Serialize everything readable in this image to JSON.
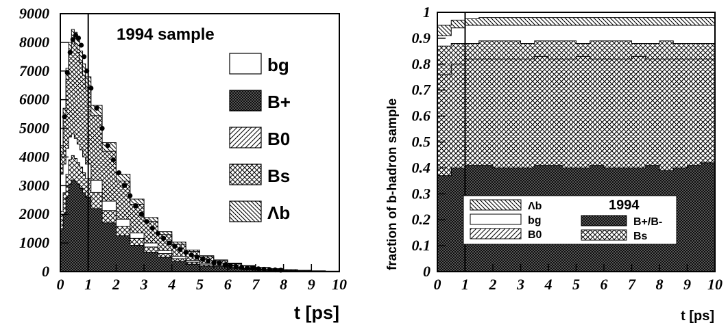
{
  "chart_data": [
    {
      "type": "area",
      "annotation": "1994 sample",
      "xlabel": "t [ps]",
      "ylabel": "",
      "xlim": [
        0,
        10
      ],
      "ylim": [
        0,
        9000
      ],
      "x_ticks": [
        "0",
        "1",
        "2",
        "3",
        "4",
        "5",
        "6",
        "7",
        "8",
        "9",
        "10"
      ],
      "y_ticks": [
        "0",
        "1000",
        "2000",
        "3000",
        "4000",
        "5000",
        "6000",
        "7000",
        "8000",
        "9000"
      ],
      "cut_line_x": 1,
      "legend_position": "right",
      "legend": [
        {
          "label": "bg",
          "pattern": "empty"
        },
        {
          "label": "B+",
          "pattern": "crosshatch-dense"
        },
        {
          "label": "B0",
          "pattern": "diag-up"
        },
        {
          "label": "Bs",
          "pattern": "crosshatch"
        },
        {
          "label": "Λb",
          "pattern": "diag-down"
        }
      ],
      "stack_order": [
        "B+",
        "Bs",
        "bg",
        "B0",
        "Λb"
      ],
      "x": [
        0.05,
        0.15,
        0.25,
        0.35,
        0.45,
        0.55,
        0.65,
        0.75,
        0.85,
        0.95,
        1.25,
        1.75,
        2.25,
        2.75,
        3.25,
        3.75,
        4.25,
        4.75,
        5.25,
        5.75,
        6.25,
        6.75,
        7.25,
        7.75,
        8.25,
        8.75,
        9.25,
        9.75
      ],
      "series": [
        {
          "name": "B+",
          "values": [
            1500,
            2000,
            2600,
            3050,
            3200,
            3150,
            3050,
            2900,
            2750,
            2600,
            2200,
            1700,
            1250,
            920,
            680,
            500,
            360,
            260,
            190,
            140,
            100,
            70,
            50,
            35,
            25,
            15,
            10,
            5
          ]
        },
        {
          "name": "Bs",
          "values": [
            600,
            750,
            800,
            850,
            850,
            800,
            750,
            750,
            700,
            650,
            560,
            430,
            330,
            240,
            180,
            130,
            95,
            70,
            50,
            35,
            25,
            18,
            12,
            8,
            5,
            3,
            2,
            1
          ]
        },
        {
          "name": "bg",
          "values": [
            1300,
            1000,
            900,
            800,
            750,
            700,
            650,
            600,
            550,
            500,
            430,
            330,
            250,
            190,
            140,
            105,
            80,
            60,
            45,
            35,
            25,
            18,
            12,
            8,
            5,
            3,
            2,
            1
          ]
        },
        {
          "name": "B0",
          "values": [
            700,
            1600,
            2400,
            2900,
            3250,
            3300,
            3200,
            3050,
            2850,
            2650,
            2260,
            1740,
            1330,
            1000,
            750,
            560,
            420,
            310,
            230,
            170,
            125,
            90,
            65,
            45,
            30,
            20,
            12,
            8
          ]
        },
        {
          "name": "Λb",
          "values": [
            300,
            350,
            400,
            400,
            400,
            400,
            400,
            400,
            400,
            400,
            350,
            300,
            240,
            180,
            135,
            100,
            75,
            55,
            40,
            30,
            22,
            15,
            10,
            7,
            5,
            3,
            2,
            1
          ]
        }
      ],
      "data_points": {
        "x": [
          0.15,
          0.25,
          0.35,
          0.45,
          0.55,
          0.65,
          0.75,
          0.85,
          0.95,
          1.1,
          1.3,
          1.5,
          1.7,
          1.9,
          2.1,
          2.3,
          2.5,
          2.7,
          2.9,
          3.1,
          3.3,
          3.5,
          3.7,
          3.9,
          4.1,
          4.3,
          4.5,
          4.7,
          4.9,
          5.1,
          5.3,
          5.5,
          5.7,
          5.9,
          6.1,
          6.3,
          6.5,
          6.7,
          6.9,
          7.1,
          7.3,
          7.5,
          7.7,
          7.9
        ],
        "y": [
          5400,
          6950,
          7650,
          8100,
          8250,
          8150,
          7900,
          7500,
          7000,
          6400,
          5700,
          5000,
          4400,
          3900,
          3450,
          3000,
          2650,
          2300,
          2000,
          1750,
          1520,
          1330,
          1160,
          1000,
          880,
          770,
          670,
          580,
          500,
          430,
          370,
          320,
          280,
          240,
          210,
          180,
          155,
          135,
          115,
          100,
          85,
          70,
          60,
          50
        ]
      }
    },
    {
      "type": "area",
      "annotation": "1994",
      "xlabel": "t [ps]",
      "ylabel": "fraction of b-hadron sample",
      "xlim": [
        0,
        10
      ],
      "ylim": [
        0,
        1
      ],
      "x_ticks": [
        "0",
        "1",
        "2",
        "3",
        "4",
        "5",
        "6",
        "7",
        "8",
        "9",
        "10"
      ],
      "y_ticks": [
        "0",
        "0.1",
        "0.2",
        "0.3",
        "0.4",
        "0.5",
        "0.6",
        "0.7",
        "0.8",
        "0.9",
        "1"
      ],
      "cut_line_x": 1,
      "legend_position": "bottom",
      "legend": [
        {
          "label": "Λb",
          "pattern": "diag-down"
        },
        {
          "label": "bg",
          "pattern": "empty"
        },
        {
          "label": "B0",
          "pattern": "diag-up"
        },
        {
          "label": "B+/B-",
          "pattern": "crosshatch-dense"
        },
        {
          "label": "Bs",
          "pattern": "crosshatch"
        }
      ],
      "x": [
        0.25,
        0.75,
        1.25,
        1.75,
        2.25,
        2.75,
        3.25,
        3.75,
        4.25,
        4.75,
        5.25,
        5.75,
        6.25,
        6.75,
        7.25,
        7.75,
        8.25,
        8.75,
        9.25,
        9.75
      ],
      "series": [
        {
          "name": "B+/B-",
          "cumulative": [
            0.37,
            0.4,
            0.41,
            0.41,
            0.4,
            0.4,
            0.4,
            0.41,
            0.41,
            0.4,
            0.4,
            0.41,
            0.4,
            0.4,
            0.4,
            0.41,
            0.39,
            0.4,
            0.41,
            0.42
          ]
        },
        {
          "name": "B0",
          "cumulative": [
            0.76,
            0.8,
            0.82,
            0.82,
            0.82,
            0.82,
            0.82,
            0.83,
            0.82,
            0.82,
            0.83,
            0.82,
            0.82,
            0.82,
            0.83,
            0.82,
            0.82,
            0.82,
            0.82,
            0.82
          ]
        },
        {
          "name": "Bs",
          "cumulative": [
            0.87,
            0.88,
            0.88,
            0.89,
            0.89,
            0.89,
            0.88,
            0.89,
            0.89,
            0.89,
            0.88,
            0.89,
            0.89,
            0.89,
            0.88,
            0.88,
            0.89,
            0.88,
            0.88,
            0.88
          ]
        },
        {
          "name": "bg",
          "cumulative": [
            0.91,
            0.94,
            0.95,
            0.95,
            0.95,
            0.95,
            0.95,
            0.95,
            0.95,
            0.95,
            0.95,
            0.95,
            0.95,
            0.95,
            0.95,
            0.95,
            0.95,
            0.95,
            0.95,
            0.95
          ]
        },
        {
          "name": "Λb",
          "cumulative": [
            0.95,
            0.97,
            0.975,
            0.98,
            0.98,
            0.98,
            0.98,
            0.98,
            0.98,
            0.98,
            0.98,
            0.98,
            0.98,
            0.98,
            0.98,
            0.98,
            0.98,
            0.98,
            0.98,
            0.98
          ]
        }
      ]
    }
  ]
}
